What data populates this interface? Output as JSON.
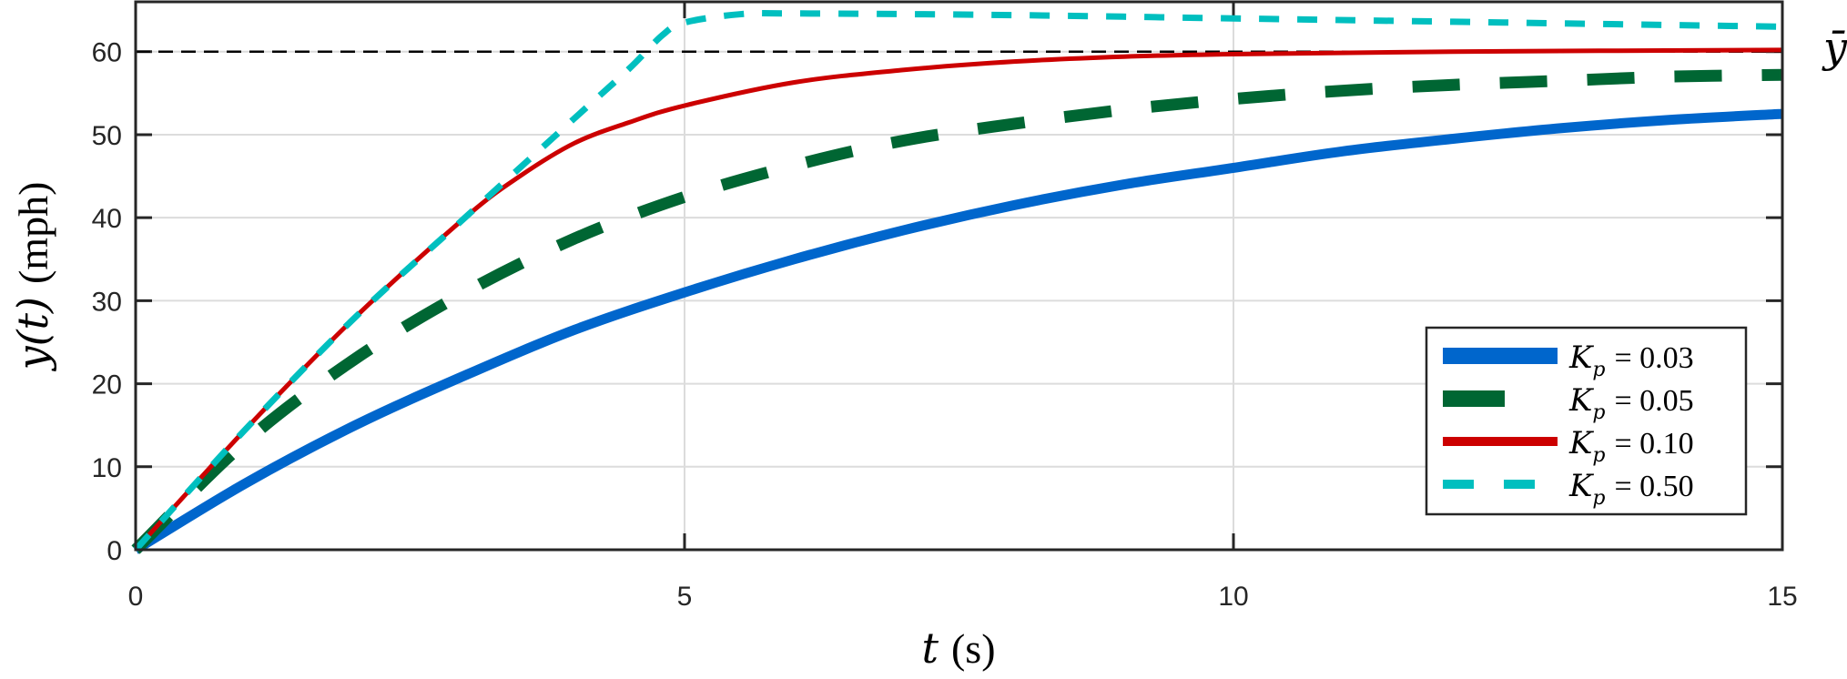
{
  "chart_data": {
    "type": "line",
    "title": "",
    "xlabel": "t (s)",
    "xlabel_var": "t",
    "xlabel_unit": "(s)",
    "ylabel": "y(t) (mph)",
    "ylabel_var": "y(t)",
    "ylabel_unit": "(mph)",
    "xlim": [
      0,
      15
    ],
    "ylim": [
      0,
      66
    ],
    "xticks": [
      0,
      5,
      10,
      15
    ],
    "yticks": [
      0,
      10,
      20,
      30,
      40,
      50,
      60
    ],
    "grid": true,
    "legend_position": "bottom-right",
    "reference_line": {
      "y": 60,
      "label": "ȳ",
      "style": "dashed",
      "color": "#000000"
    },
    "series": [
      {
        "name": "K_p = 0.03",
        "label_var": "K",
        "label_sub": "p",
        "label_value": "= 0.03",
        "color": "#0066CC",
        "style": "solid-thick",
        "x": [
          0,
          1,
          2,
          3,
          4,
          5,
          6,
          7,
          8,
          9,
          10,
          11,
          12,
          13,
          14,
          15
        ],
        "y": [
          0,
          8,
          15,
          21,
          26.5,
          31,
          35,
          38.5,
          41.5,
          44,
          46,
          48,
          49.5,
          50.8,
          51.8,
          52.5
        ]
      },
      {
        "name": "K_p = 0.05",
        "label_var": "K",
        "label_sub": "p",
        "label_value": "= 0.05",
        "color": "#006633",
        "style": "dashed-thick",
        "x": [
          0,
          1,
          2,
          3,
          4,
          5,
          6,
          7,
          8,
          9,
          10,
          11,
          12,
          13,
          14,
          15
        ],
        "y": [
          0,
          13,
          23,
          31,
          37.5,
          42.5,
          46.3,
          49.3,
          51.3,
          53,
          54.3,
          55.3,
          56,
          56.5,
          57,
          57.2
        ]
      },
      {
        "name": "K_p = 0.10",
        "label_var": "K",
        "label_sub": "p",
        "label_value": "= 0.10",
        "color": "#CC0000",
        "style": "solid",
        "x": [
          0,
          1,
          2,
          3,
          3.5,
          4,
          4.5,
          5,
          6,
          7,
          8,
          9,
          10,
          12,
          15
        ],
        "y": [
          0,
          14.5,
          28,
          40,
          45,
          49,
          51.5,
          53.5,
          56.3,
          57.8,
          58.8,
          59.4,
          59.7,
          60,
          60.2
        ]
      },
      {
        "name": "K_p = 0.50",
        "label_var": "K",
        "label_sub": "p",
        "label_value": "= 0.50",
        "color": "#00BFBF",
        "style": "dashed",
        "x": [
          0,
          1,
          2,
          3,
          4,
          4.5,
          4.8,
          5,
          5.5,
          6,
          8,
          10,
          12,
          15
        ],
        "y": [
          0,
          14.5,
          28,
          40,
          52,
          58,
          62,
          63.5,
          64.5,
          64.6,
          64.4,
          64,
          63.6,
          63
        ]
      }
    ]
  }
}
